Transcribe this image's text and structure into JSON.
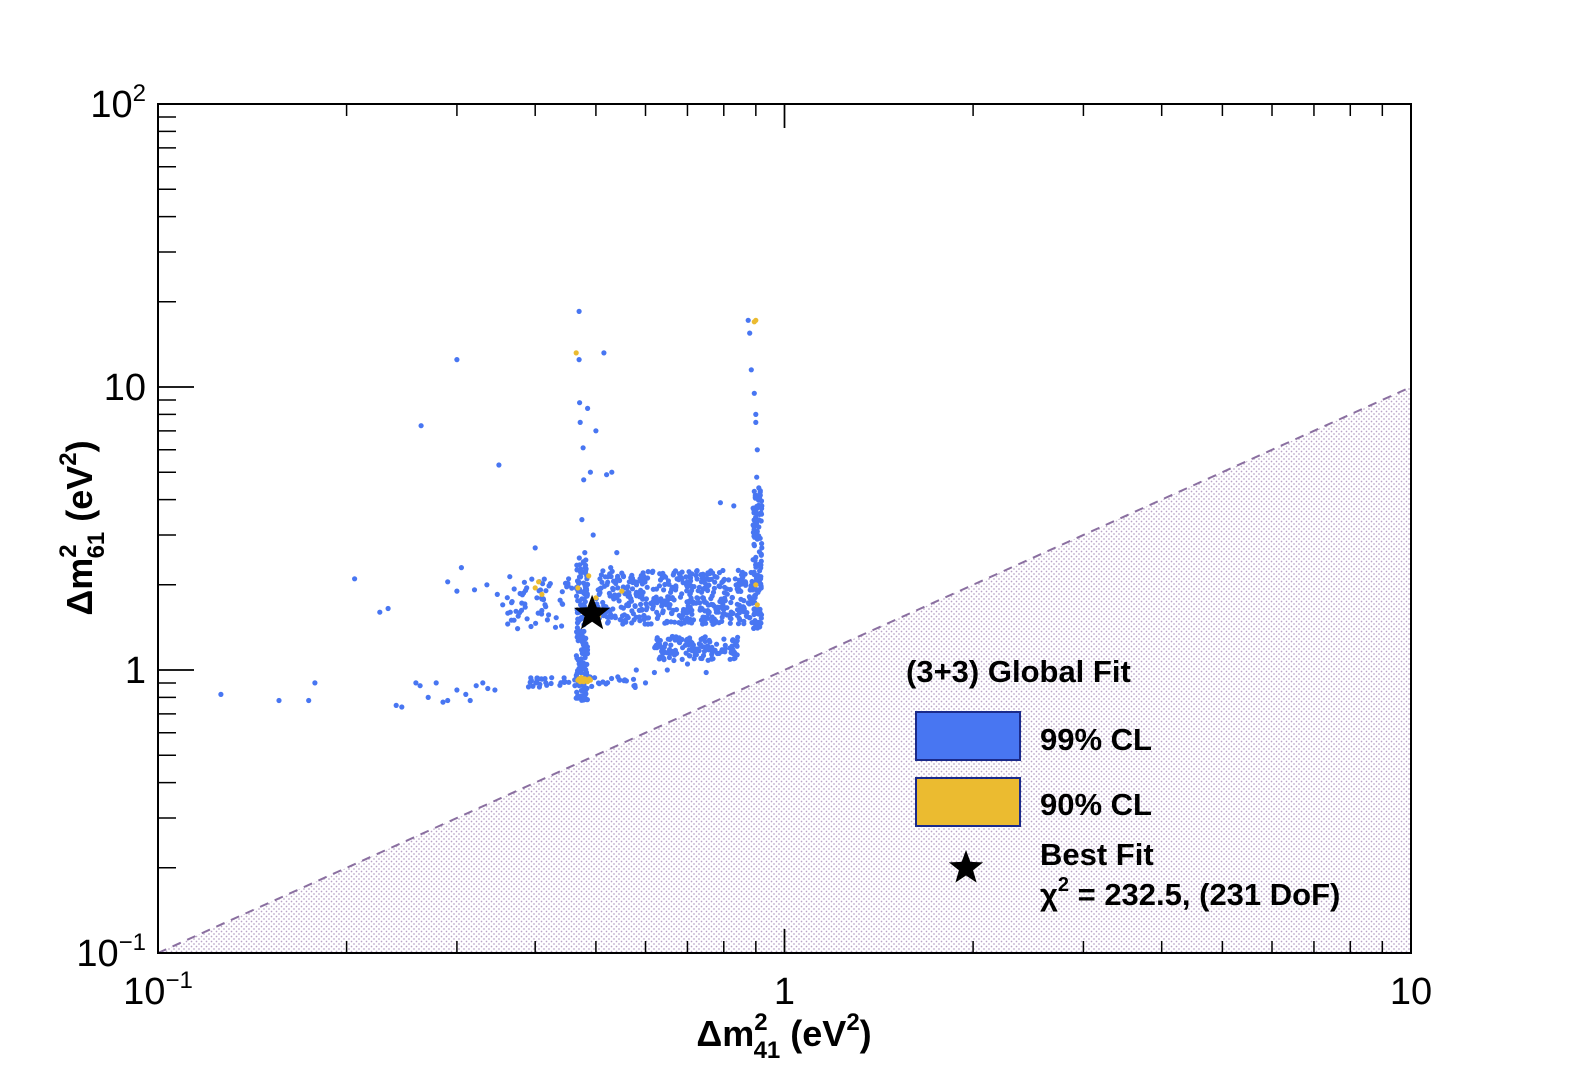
{
  "chart_data": {
    "type": "scatter",
    "xscale": "log",
    "yscale": "log",
    "xlim": [
      0.1,
      10
    ],
    "ylim": [
      0.1,
      100
    ],
    "xlabel": {
      "main": "Δm",
      "sup": "2",
      "sub": "41",
      "unit_open": " (eV",
      "unit_sup": "2",
      "unit_close": ")"
    },
    "ylabel": {
      "main": "Δm",
      "sup": "2",
      "sub": "61",
      "unit_open": " (eV",
      "unit_sup": "2",
      "unit_close": ")"
    },
    "x_ticks": [
      {
        "value": 0.1,
        "base": "10",
        "exp": "−1"
      },
      {
        "value": 1,
        "base": "1",
        "exp": ""
      },
      {
        "value": 10,
        "base": "10",
        "exp": ""
      }
    ],
    "y_ticks": [
      {
        "value": 0.1,
        "base": "10",
        "exp": "−1"
      },
      {
        "value": 1,
        "base": "1",
        "exp": ""
      },
      {
        "value": 10,
        "base": "10",
        "exp": ""
      },
      {
        "value": 100,
        "base": "10",
        "exp": "2"
      }
    ],
    "grid": false,
    "excluded_region": {
      "boundary": "y = x",
      "style": "dashed line, dotted fill below",
      "color": "#8a6fa0"
    },
    "colors": {
      "cl99": "#4876f2",
      "cl90": "#ebbb30",
      "best_fit": "#000000"
    },
    "series": [
      {
        "name": "99% CL",
        "color": "#4876f2",
        "regions": [
          {
            "desc": "main block",
            "x": [
              0.5,
              0.9
            ],
            "y": [
              1.45,
              2.25
            ],
            "n": 460
          },
          {
            "desc": "lower horizontal band",
            "x": [
              0.62,
              0.85
            ],
            "y": [
              1.08,
              1.32
            ],
            "n": 130
          },
          {
            "desc": "vertical column at x=0.47",
            "x": [
              0.465,
              0.485
            ],
            "y": [
              0.78,
              2.5
            ],
            "n": 170
          },
          {
            "desc": "vertical column at x=0.9",
            "x": [
              0.89,
              0.92
            ],
            "y": [
              1.4,
              4.3
            ],
            "n": 110
          },
          {
            "desc": "left strip",
            "x": [
              0.36,
              0.46
            ],
            "y": [
              1.4,
              2.15
            ],
            "n": 60
          },
          {
            "desc": "low strip",
            "x": [
              0.39,
              0.58
            ],
            "y": [
              0.86,
              0.95
            ],
            "n": 55
          }
        ],
        "x": [
          0.126,
          0.156,
          0.174,
          0.178,
          0.206,
          0.226,
          0.233,
          0.24,
          0.245,
          0.258,
          0.262,
          0.27,
          0.278,
          0.285,
          0.29,
          0.3,
          0.31,
          0.315,
          0.322,
          0.33,
          0.336,
          0.345,
          0.29,
          0.3,
          0.305,
          0.32,
          0.335,
          0.348,
          0.355,
          0.365,
          0.37,
          0.375,
          0.263,
          0.3,
          0.35,
          0.4,
          0.47,
          0.47,
          0.471,
          0.472,
          0.475,
          0.477,
          0.478,
          0.48,
          0.485,
          0.49,
          0.495,
          0.5,
          0.515,
          0.52,
          0.528,
          0.53,
          0.54,
          0.55,
          0.56,
          0.58,
          0.6,
          0.62,
          0.65,
          0.7,
          0.75,
          0.79,
          0.83,
          0.875,
          0.88,
          0.885,
          0.895,
          0.9,
          0.9,
          0.903,
          0.905,
          0.91,
          0.912,
          0.915,
          0.92,
          0.92,
          0.9,
          0.91,
          0.905,
          0.91
        ],
        "y": [
          0.82,
          0.78,
          0.78,
          0.9,
          2.1,
          1.6,
          1.65,
          0.75,
          0.74,
          0.9,
          0.88,
          0.8,
          0.9,
          0.77,
          0.78,
          0.85,
          0.82,
          0.78,
          0.88,
          0.9,
          0.86,
          0.85,
          2.05,
          1.9,
          2.3,
          1.92,
          2.0,
          1.85,
          1.7,
          1.6,
          1.5,
          1.4,
          7.3,
          12.5,
          5.3,
          2.7,
          18.5,
          12.5,
          8.8,
          7.5,
          3.4,
          6.1,
          4.7,
          2.6,
          8.4,
          5.0,
          3.0,
          7.0,
          13.2,
          4.9,
          2.3,
          5.0,
          2.6,
          2.2,
          1.7,
          1.0,
          0.9,
          0.98,
          1.0,
          1.05,
          0.98,
          3.9,
          3.8,
          17.2,
          15.5,
          11.5,
          9.5,
          7.5,
          8.0,
          4.8,
          6.0,
          4.4,
          4.0,
          4.3,
          3.8,
          2.7,
          2.5,
          3.2,
          2.9,
          2.1
        ]
      },
      {
        "name": "90% CL",
        "color": "#ebbb30",
        "x": [
          0.468,
          0.472,
          0.476,
          0.48,
          0.485,
          0.49,
          0.47,
          0.474,
          0.478,
          0.482,
          0.488,
          0.465,
          0.468,
          0.4,
          0.405,
          0.41,
          0.55,
          0.487,
          0.5,
          0.505,
          0.895,
          0.9,
          0.9,
          0.905
        ],
        "y": [
          0.92,
          0.91,
          0.92,
          0.93,
          0.91,
          0.92,
          0.93,
          0.94,
          0.91,
          0.92,
          0.93,
          13.2,
          1.95,
          1.95,
          2.05,
          1.85,
          1.9,
          2.15,
          1.8,
          1.55,
          17.0,
          17.2,
          2.0,
          1.7
        ]
      },
      {
        "name": "Best Fit",
        "marker": "star",
        "x": [
          0.493
        ],
        "y": [
          1.58
        ]
      }
    ],
    "legend": {
      "placement": "lower-right",
      "title": "(3+3) Global Fit",
      "entries": [
        {
          "label": "99% CL",
          "color": "#4876f2"
        },
        {
          "label": "90% CL",
          "color": "#ebbb30"
        }
      ],
      "best_fit": {
        "label": "Best Fit",
        "chi_symbol": "χ",
        "chi_sup": "2",
        "chi_value": " = 232.5, (231 DoF)"
      }
    }
  }
}
